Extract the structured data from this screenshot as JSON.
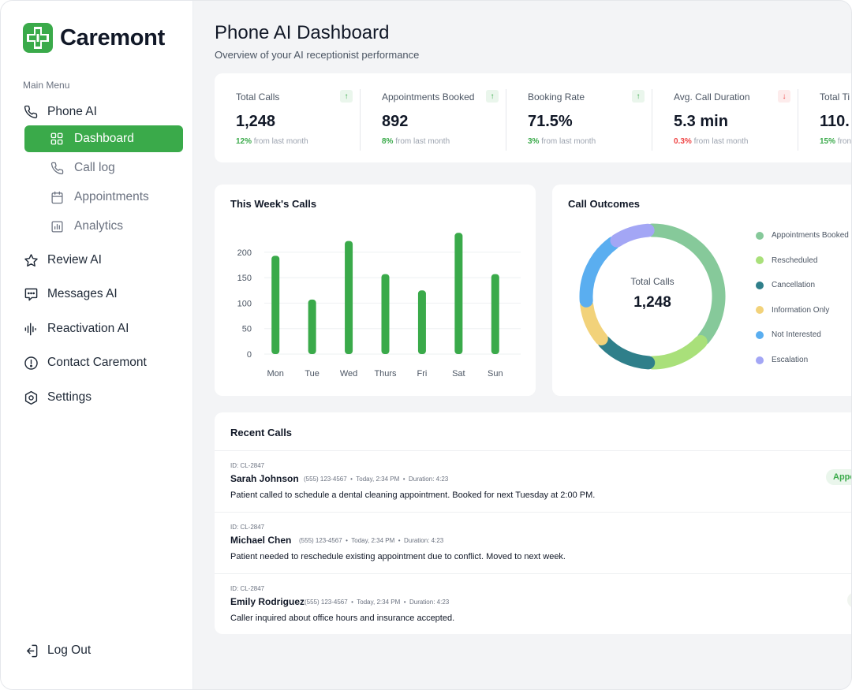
{
  "app": {
    "brand": "Caremont",
    "accent": "#3aaa4a"
  },
  "sidebar": {
    "menu_heading": "Main Menu",
    "phone_ai": {
      "label": "Phone AI",
      "icon": "phone-icon"
    },
    "phone_sub": [
      {
        "label": "Dashboard",
        "icon": "grid-icon",
        "active": true
      },
      {
        "label": "Call log",
        "icon": "phone-icon"
      },
      {
        "label": "Appointments",
        "icon": "calendar-icon"
      },
      {
        "label": "Analytics",
        "icon": "bar-chart-icon"
      }
    ],
    "items": [
      {
        "label": "Review AI",
        "icon": "star-icon"
      },
      {
        "label": "Messages AI",
        "icon": "message-icon"
      },
      {
        "label": "Reactivation AI",
        "icon": "waveform-icon"
      },
      {
        "label": "Contact Caremont",
        "icon": "info-circle-icon"
      },
      {
        "label": "Settings",
        "icon": "gear-icon"
      }
    ],
    "logout": {
      "label": "Log Out",
      "icon": "logout-icon"
    }
  },
  "header": {
    "title": "Phone AI Dashboard",
    "subtitle": "Overview of your AI receptionist performance"
  },
  "kpis": [
    {
      "label": "Total Calls",
      "value": "1,248",
      "delta": "12%",
      "delta_text": " from last month",
      "trend": "up"
    },
    {
      "label": "Appointments Booked",
      "value": "892",
      "delta": "8%",
      "delta_text": " from last month",
      "trend": "up"
    },
    {
      "label": "Booking Rate",
      "value": "71.5%",
      "delta": "3%",
      "delta_text": " from last month",
      "trend": "up"
    },
    {
      "label": "Avg. Call Duration",
      "value": "5.3 min",
      "delta": "0.3%",
      "delta_text": " from last month",
      "trend": "down"
    },
    {
      "label": "Total Ti",
      "value": "110.",
      "delta": "15%",
      "delta_text": " fron",
      "trend": "up"
    }
  ],
  "weekly_calls": {
    "title": "This Week's Calls"
  },
  "call_outcomes": {
    "title": "Call Outcomes",
    "center_label": "Total Calls",
    "center_value": "1,248"
  },
  "chart_data": [
    {
      "type": "bar",
      "title": "This Week's Calls",
      "categories": [
        "Mon",
        "Tue",
        "Wed",
        "Thurs",
        "Fri",
        "Sat",
        "Sun"
      ],
      "values": [
        193,
        107,
        222,
        157,
        125,
        238,
        157
      ],
      "ylim": [
        0,
        240
      ],
      "yticks": [
        0,
        50,
        100,
        150,
        200
      ],
      "grid": true,
      "color": "#3aaa4a"
    },
    {
      "type": "pie",
      "title": "Call Outcomes",
      "donut": true,
      "labels": [
        "Appointments Booked",
        "Rescheduled",
        "Cancellation",
        "Information Only",
        "Not Interested",
        "Escalation"
      ],
      "values": [
        37,
        14,
        13,
        10,
        17,
        9
      ],
      "colors": [
        "#86c99a",
        "#a9e07a",
        "#2f7f8a",
        "#f2d27a",
        "#5aaef0",
        "#a3a6f5"
      ],
      "legend": "right"
    }
  ],
  "recent_calls": {
    "title": "Recent Calls",
    "rows": [
      {
        "id": "ID: CL-2847",
        "name": "Sarah Johnson",
        "phone": "(555) 123-4567",
        "time": "Today, 2:34 PM",
        "duration": "Duration: 4:23",
        "desc": "Patient called to schedule a dental cleaning appointment. Booked for next Tuesday at 2:00 PM.",
        "status": "Appo"
      },
      {
        "id": "ID: CL-2847",
        "name": "Michael Chen",
        "phone": "(555) 123-4567",
        "time": "Today, 2:34 PM",
        "duration": "Duration: 4:23",
        "desc": "Patient needed to reschedule existing appointment due to conflict. Moved to next week.",
        "status": ""
      },
      {
        "id": "ID: CL-2847",
        "name": "Emily Rodriguez",
        "phone": "(555) 123-4567",
        "time": "Today, 2:34 PM",
        "duration": "Duration: 4:23",
        "desc": "Caller inquired about office hours and insurance accepted.",
        "status": ""
      }
    ]
  }
}
